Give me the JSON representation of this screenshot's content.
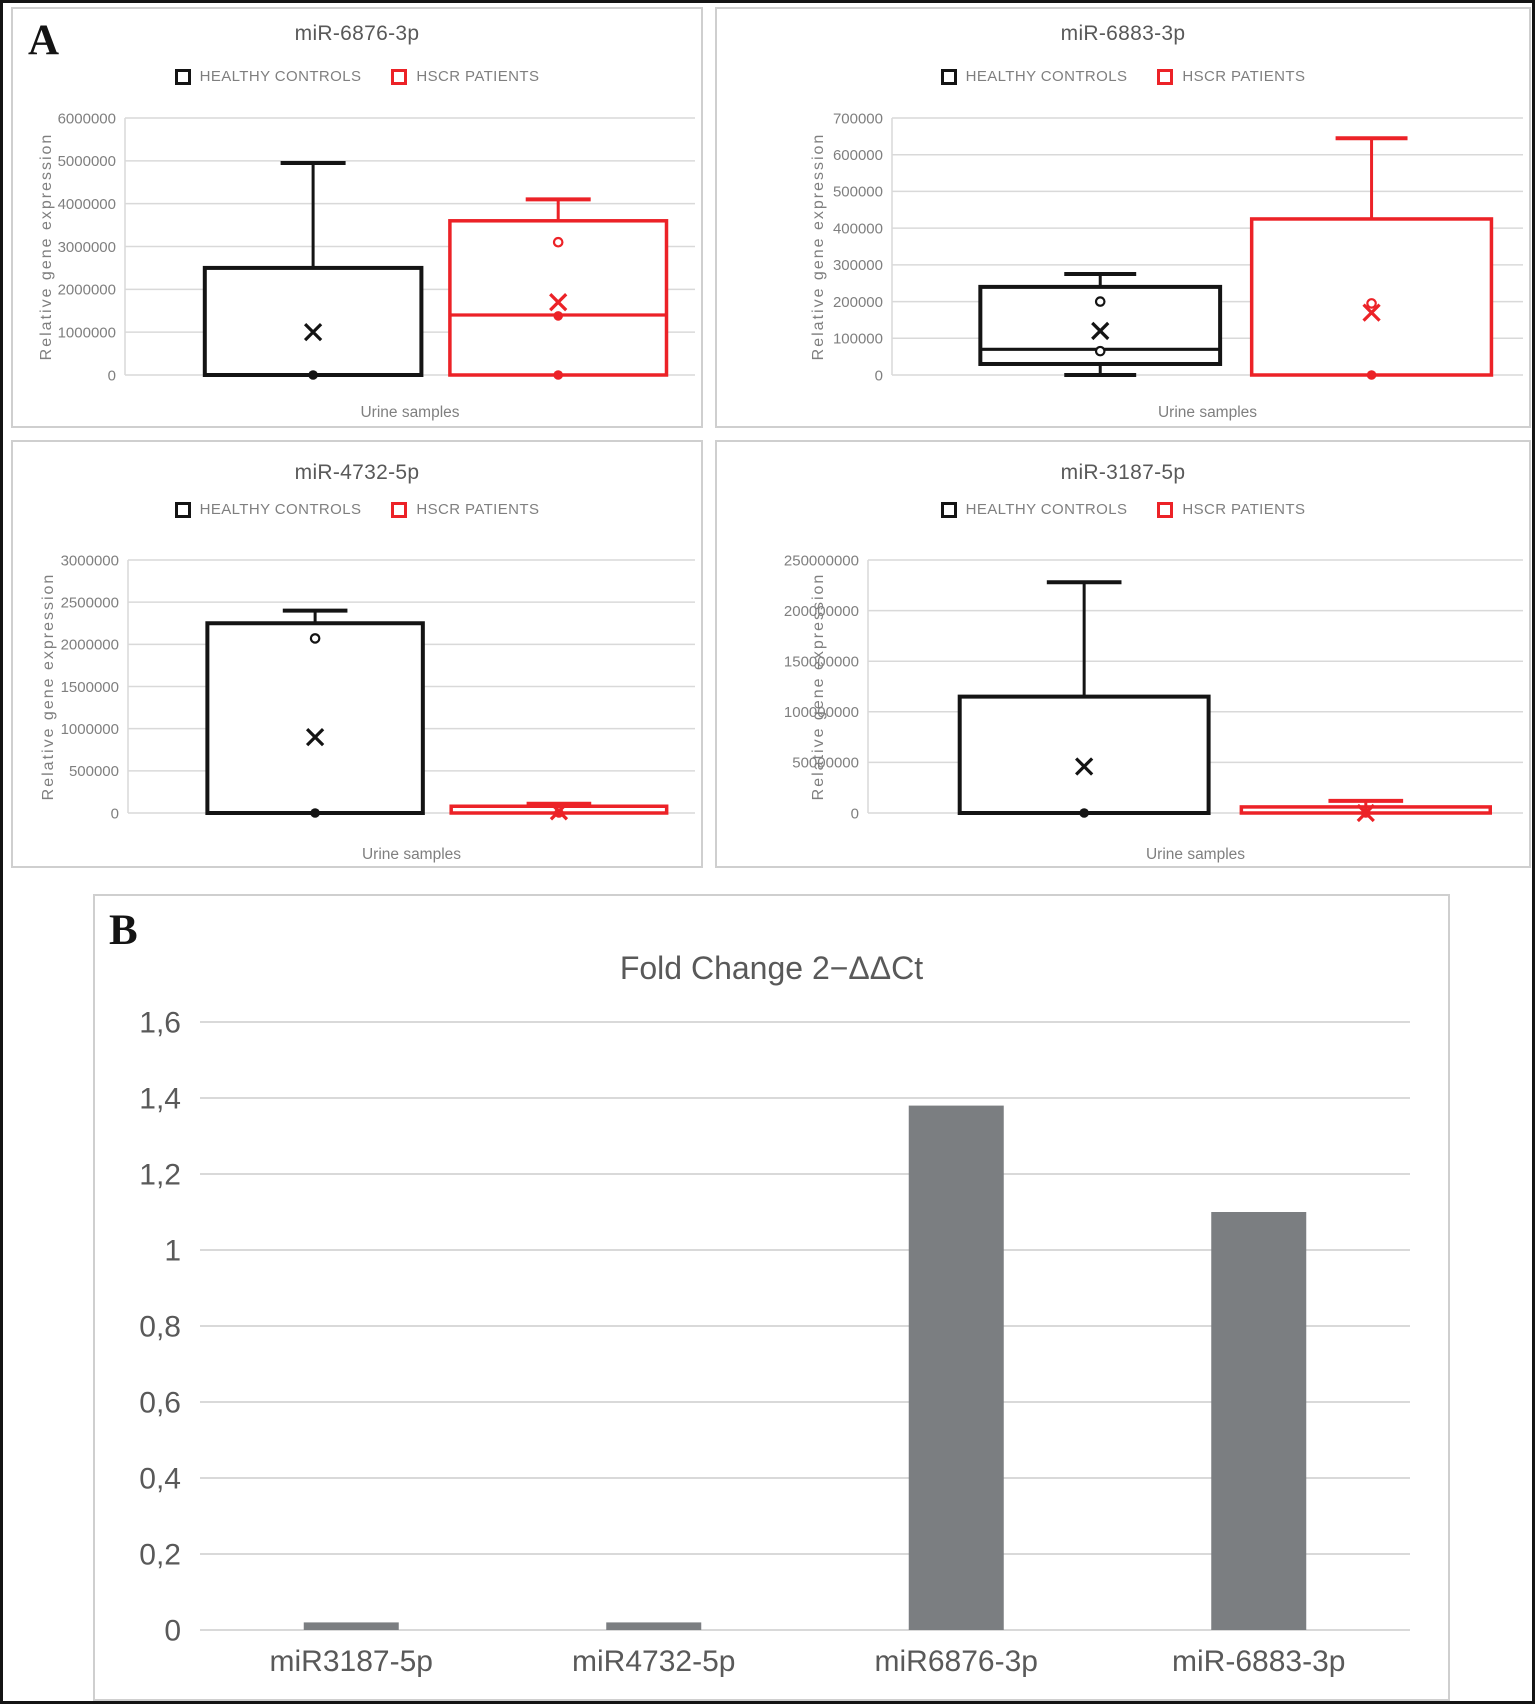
{
  "page": {
    "panel_a_label": "A",
    "panel_b_label": "B"
  },
  "colors": {
    "healthy_controls": "#141414",
    "hscr_patients": "#ec2227",
    "bar_gray": "#7b7e81",
    "grid": "#d9d9d9",
    "title_text": "#595959",
    "tick_text": "#7f7f7f"
  },
  "chart_data": [
    {
      "type": "box",
      "panel": "A",
      "title": "miR-6876-3p",
      "x_axis_label": "Urine samples",
      "y_axis_label": "Relative gene expression",
      "ylim": [
        0,
        6000000
      ],
      "yticks": [
        "6000000",
        "5000000",
        "4000000",
        "3000000",
        "2000000",
        "1000000",
        "0"
      ],
      "grid": true,
      "legend_position": "top",
      "series": [
        {
          "name": "HEALTHY CONTROLS",
          "color": "#141414",
          "box": {
            "q1": 0,
            "median": 0,
            "q3": 2500000,
            "whisker_low": null,
            "whisker_high": 4950000,
            "mean": 1000000
          },
          "points": [
            {
              "value": 0,
              "style": "filled"
            }
          ]
        },
        {
          "name": "HSCR PATIENTS",
          "color": "#ec2227",
          "box": {
            "q1": 0,
            "median": 1400000,
            "q3": 3600000,
            "whisker_low": null,
            "whisker_high": 4100000,
            "mean": 1700000
          },
          "points": [
            {
              "value": 3100000,
              "style": "open"
            },
            {
              "value": 1380000,
              "style": "filled"
            },
            {
              "value": 0,
              "style": "filled"
            }
          ]
        }
      ]
    },
    {
      "type": "box",
      "panel": "A",
      "title": "miR-6883-3p",
      "x_axis_label": "Urine samples",
      "y_axis_label": "Relative gene expression",
      "ylim": [
        0,
        700000
      ],
      "yticks": [
        "700000",
        "600000",
        "500000",
        "400000",
        "300000",
        "200000",
        "100000",
        "0"
      ],
      "grid": true,
      "legend_position": "top",
      "series": [
        {
          "name": "HEALTHY CONTROLS",
          "color": "#141414",
          "box": {
            "q1": 30000,
            "median": 70000,
            "q3": 240000,
            "whisker_low": 0,
            "whisker_high": 275000,
            "mean": 120000
          },
          "points": [
            {
              "value": 200000,
              "style": "open"
            },
            {
              "value": 65000,
              "style": "open"
            }
          ]
        },
        {
          "name": "HSCR PATIENTS",
          "color": "#ec2227",
          "box": {
            "q1": 0,
            "median": null,
            "q3": 425000,
            "whisker_low": null,
            "whisker_high": 645000,
            "mean": 170000
          },
          "points": [
            {
              "value": 195000,
              "style": "open"
            },
            {
              "value": 0,
              "style": "filled"
            }
          ]
        }
      ]
    },
    {
      "type": "box",
      "panel": "A",
      "title": "miR-4732-5p",
      "x_axis_label": "Urine samples",
      "y_axis_label": "Relative gene expression",
      "ylim": [
        0,
        3000000
      ],
      "yticks": [
        "3000000",
        "2500000",
        "2000000",
        "1500000",
        "1000000",
        "500000",
        "0"
      ],
      "grid": true,
      "legend_position": "top",
      "series": [
        {
          "name": "HEALTHY CONTROLS",
          "color": "#141414",
          "box": {
            "q1": 0,
            "median": 0,
            "q3": 2250000,
            "whisker_low": null,
            "whisker_high": 2400000,
            "mean": 900000
          },
          "points": [
            {
              "value": 2070000,
              "style": "open"
            },
            {
              "value": 0,
              "style": "filled"
            }
          ]
        },
        {
          "name": "HSCR PATIENTS",
          "color": "#ec2227",
          "box": {
            "q1": 0,
            "median": null,
            "q3": 80000,
            "whisker_low": null,
            "whisker_high": 110000,
            "mean": 20000
          },
          "points": [
            {
              "value": 0,
              "style": "filled"
            }
          ]
        }
      ]
    },
    {
      "type": "box",
      "panel": "A",
      "title": "miR-3187-5p",
      "x_axis_label": "Urine samples",
      "y_axis_label": "Relative gene expression",
      "ylim": [
        0,
        250000000
      ],
      "yticks": [
        "250000000",
        "200000000",
        "150000000",
        "100000000",
        "50000000",
        "0"
      ],
      "grid": true,
      "legend_position": "top",
      "series": [
        {
          "name": "HEALTHY CONTROLS",
          "color": "#141414",
          "box": {
            "q1": 0,
            "median": 0,
            "q3": 115000000,
            "whisker_low": null,
            "whisker_high": 228000000,
            "mean": 46000000
          },
          "points": [
            {
              "value": 0,
              "style": "filled"
            }
          ]
        },
        {
          "name": "HSCR PATIENTS",
          "color": "#ec2227",
          "box": {
            "q1": 0,
            "median": null,
            "q3": 6000000,
            "whisker_low": null,
            "whisker_high": 12000000,
            "mean": 0
          },
          "points": [
            {
              "value": 0,
              "style": "filled"
            }
          ]
        }
      ]
    },
    {
      "type": "bar",
      "panel": "B",
      "title": "Fold Change 2−ΔΔCt",
      "categories": [
        "miR3187-5p",
        "miR4732-5p",
        "miR6876-3p",
        "miR-6883-3p"
      ],
      "values": [
        0.02,
        0.02,
        1.38,
        1.1
      ],
      "ylim": [
        0,
        1.6
      ],
      "yticks": [
        "1,6",
        "1,4",
        "1,2",
        "1",
        "0,8",
        "0,6",
        "0,4",
        "0,2",
        "0"
      ],
      "bar_color": "#7b7e81",
      "grid": true,
      "xlabel": "",
      "ylabel": ""
    }
  ]
}
